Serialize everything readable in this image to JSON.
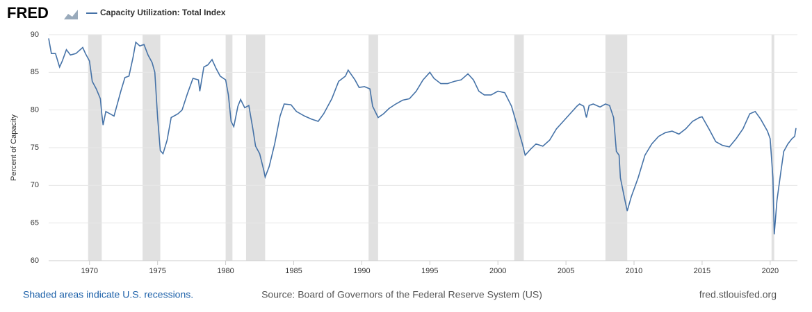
{
  "logo": "FRED",
  "chart_data": {
    "type": "line",
    "ylabel": "Percent of Capacity",
    "series": [
      {
        "name": "Capacity Utilization: Total Index",
        "color": "#4572a7",
        "x": [
          1967.0,
          1967.2,
          1967.5,
          1967.8,
          1968.0,
          1968.3,
          1968.6,
          1969.0,
          1969.5,
          1969.7,
          1970.0,
          1970.2,
          1970.5,
          1970.8,
          1970.9,
          1971.0,
          1971.2,
          1971.5,
          1971.8,
          1972.0,
          1972.3,
          1972.6,
          1972.9,
          1973.2,
          1973.4,
          1973.7,
          1974.0,
          1974.3,
          1974.6,
          1974.8,
          1975.0,
          1975.2,
          1975.4,
          1975.7,
          1976.0,
          1976.5,
          1976.8,
          1977.2,
          1977.6,
          1978.0,
          1978.1,
          1978.4,
          1978.7,
          1979.0,
          1979.3,
          1979.6,
          1980.0,
          1980.2,
          1980.4,
          1980.6,
          1980.9,
          1981.1,
          1981.4,
          1981.7,
          1982.0,
          1982.2,
          1982.5,
          1982.8,
          1982.9,
          1983.2,
          1983.6,
          1984.0,
          1984.3,
          1984.8,
          1985.2,
          1985.8,
          1986.3,
          1986.8,
          1987.2,
          1987.8,
          1988.3,
          1988.8,
          1989.0,
          1989.5,
          1989.8,
          1990.2,
          1990.6,
          1990.8,
          1991.2,
          1991.6,
          1992.0,
          1992.5,
          1993.0,
          1993.5,
          1994.0,
          1994.5,
          1995.0,
          1995.3,
          1995.8,
          1996.3,
          1996.8,
          1997.3,
          1997.8,
          1998.2,
          1998.6,
          1999.0,
          1999.5,
          2000.0,
          2000.5,
          2001.0,
          2001.4,
          2001.8,
          2002.0,
          2002.4,
          2002.8,
          2003.3,
          2003.8,
          2004.3,
          2004.8,
          2005.3,
          2005.8,
          2006.0,
          2006.3,
          2006.5,
          2006.7,
          2007.0,
          2007.5,
          2007.9,
          2008.2,
          2008.5,
          2008.7,
          2008.9,
          2009.0,
          2009.3,
          2009.5,
          2009.8,
          2010.3,
          2010.8,
          2011.3,
          2011.8,
          2012.3,
          2012.8,
          2013.3,
          2013.8,
          2014.3,
          2014.8,
          2015.0,
          2015.5,
          2016.0,
          2016.5,
          2017.0,
          2017.5,
          2018.0,
          2018.5,
          2018.9,
          2019.3,
          2019.8,
          2020.0,
          2020.2,
          2020.3,
          2020.5,
          2020.8,
          2021.0,
          2021.3,
          2021.6,
          2021.8,
          2021.9
        ],
        "values": [
          89.5,
          87.5,
          87.5,
          85.7,
          86.5,
          88,
          87.3,
          87.5,
          88.3,
          87.5,
          86.5,
          83.8,
          82.8,
          81.5,
          79.5,
          78,
          79.8,
          79.5,
          79.2,
          80.5,
          82.5,
          84.3,
          84.5,
          87,
          89,
          88.5,
          88.7,
          87.3,
          86.3,
          85,
          79,
          74.6,
          74.2,
          76,
          79,
          79.5,
          80,
          82.2,
          84.2,
          84,
          82.5,
          85.7,
          86,
          86.7,
          85.5,
          84.5,
          84,
          82,
          78.5,
          77.8,
          80.5,
          81.4,
          80.3,
          80.6,
          77.5,
          75.2,
          74.2,
          72,
          71.1,
          72.5,
          75.5,
          79.2,
          80.8,
          80.7,
          79.8,
          79.2,
          78.8,
          78.5,
          79.5,
          81.5,
          83.8,
          84.5,
          85.3,
          84,
          83,
          83.1,
          82.8,
          80.5,
          79,
          79.5,
          80.2,
          80.8,
          81.3,
          81.5,
          82.5,
          84,
          85,
          84.2,
          83.5,
          83.5,
          83.8,
          84,
          84.8,
          84,
          82.5,
          82,
          82,
          82.5,
          82.3,
          80.5,
          78,
          75.5,
          74,
          74.8,
          75.5,
          75.2,
          76,
          77.5,
          78.5,
          79.5,
          80.5,
          80.8,
          80.5,
          79,
          80.6,
          80.8,
          80.4,
          80.8,
          80.6,
          79,
          74.5,
          74,
          71,
          68.3,
          66.6,
          68.5,
          71,
          74,
          75.5,
          76.5,
          77,
          77.2,
          76.8,
          77.5,
          78.5,
          79,
          79.1,
          77.5,
          75.8,
          75.3,
          75.1,
          76.2,
          77.5,
          79.5,
          79.8,
          78.8,
          77.2,
          76.2,
          71,
          63.5,
          68,
          72,
          74.5,
          75.5,
          76.2,
          76.5,
          77.6
        ]
      }
    ],
    "recessions": [
      [
        1969.9,
        1970.9
      ],
      [
        1973.9,
        1975.2
      ],
      [
        1980.0,
        1980.5
      ],
      [
        1981.5,
        1982.9
      ],
      [
        1990.5,
        1991.2
      ],
      [
        2001.2,
        2001.9
      ],
      [
        2007.9,
        2009.5
      ],
      [
        2020.1,
        2020.3
      ]
    ],
    "xlim": [
      1967,
      2022
    ],
    "xticks": [
      1970,
      1975,
      1980,
      1985,
      1990,
      1995,
      2000,
      2005,
      2010,
      2015,
      2020
    ],
    "ylim": [
      60,
      90
    ],
    "yticks": [
      60,
      65,
      70,
      75,
      80,
      85,
      90
    ],
    "grid": true
  },
  "footer": {
    "left": "Shaded areas indicate U.S. recessions.",
    "center": "Source: Board of Governors of the Federal Reserve System (US)",
    "right": "fred.stlouisfed.org"
  }
}
